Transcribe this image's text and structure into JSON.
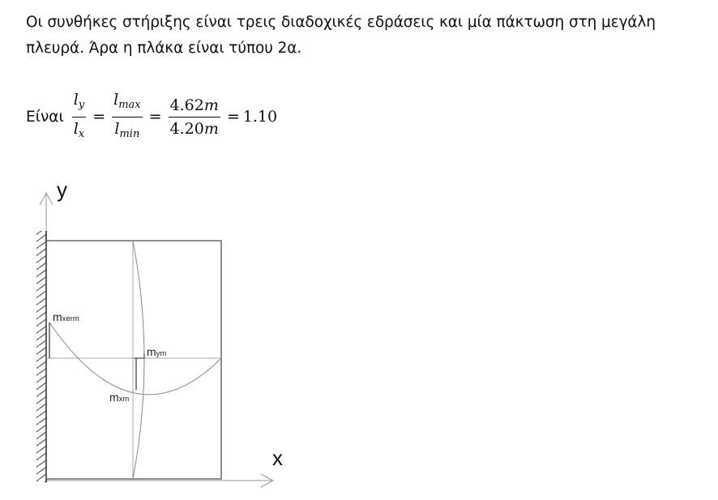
{
  "text": {
    "line1": "Οι συνθήκες στήριξης είναι τρεις διαδοχικές εδράσεις και μία πάκτωση στη μεγάλη",
    "line2": "πλευρά. Άρα η πλάκα είναι τύπου 2α."
  },
  "equation": {
    "prefix": "Είναι",
    "frac1": {
      "num_base": "l",
      "num_sub": "y",
      "den_base": "l",
      "den_sub": "x"
    },
    "eq1": "=",
    "frac2": {
      "num_base": "l",
      "num_sub": "max",
      "den_base": "l",
      "den_sub": "min"
    },
    "eq2": "=",
    "frac3": {
      "num_value": "4.62",
      "num_unit": "m",
      "den_value": "4.20",
      "den_unit": "m"
    },
    "eq3": "=",
    "result": "1.10"
  },
  "diagram": {
    "y_axis_label": "y",
    "x_axis_label": "x",
    "m_xerm": {
      "base": "m",
      "sub": "xerm"
    },
    "m_ym": {
      "base": "m",
      "sub": "ym"
    },
    "m_xm": {
      "base": "m",
      "sub": "xm"
    }
  }
}
